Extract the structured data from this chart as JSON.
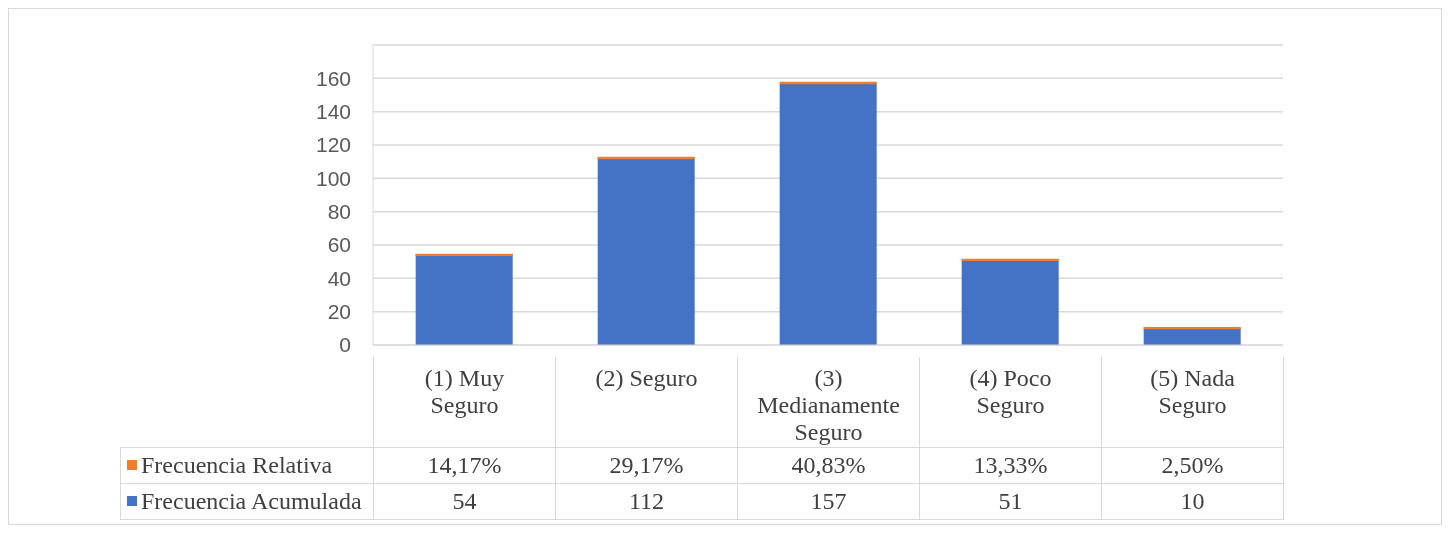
{
  "chart_data": {
    "type": "bar",
    "stacked": true,
    "categories": [
      "(1) Muy Seguro",
      "(2) Seguro",
      "(3) Medianamente Seguro",
      "(4) Poco Seguro",
      "(5) Nada Seguro"
    ],
    "series": [
      {
        "name": "Frecuencia Acumulada",
        "color": "#4472c4",
        "values": [
          54,
          112,
          157,
          51,
          10
        ],
        "value_labels": [
          "54",
          "112",
          "157",
          "51",
          "10"
        ]
      },
      {
        "name": "Frecuencia Relativa",
        "color": "#ed7d31",
        "values": [
          0.1417,
          0.2917,
          0.4083,
          0.1333,
          0.025
        ],
        "value_labels": [
          "14,17%",
          "29,17%",
          "40,83%",
          "13,33%",
          "2,50%"
        ]
      }
    ],
    "ylim": [
      0,
      180
    ],
    "yticks": [
      0,
      20,
      40,
      60,
      80,
      100,
      120,
      140,
      160,
      {
        "value": 180,
        "label": null
      }
    ],
    "grid": "y",
    "legend": "bottom"
  }
}
